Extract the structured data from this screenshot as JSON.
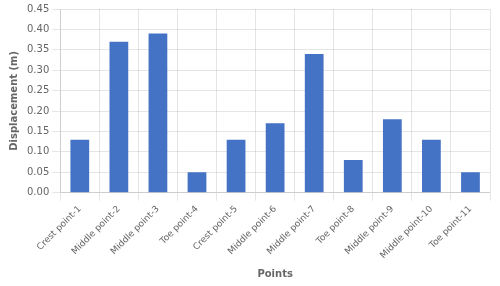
{
  "chart_data": {
    "type": "bar",
    "categories": [
      "Crest point-1",
      "Middle point-2",
      "Middle point-3",
      "Toe point-4",
      "Crest point-5",
      "Middle point-6",
      "Middle point-7",
      "Toe point-8",
      "Middle point-9",
      "Middle point-10",
      "Toe point-11"
    ],
    "values": [
      0.13,
      0.37,
      0.39,
      0.05,
      0.13,
      0.17,
      0.34,
      0.08,
      0.18,
      0.13,
      0.05
    ],
    "color": "#4472C4",
    "xlabel": "Points",
    "ylabel": "Displacement (m)",
    "ylim": [
      0.0,
      0.45
    ],
    "yticks": [
      {
        "value": 0.0,
        "label": "0.00"
      },
      {
        "value": 0.05,
        "label": "0.05"
      },
      {
        "value": 0.1,
        "label": "0.10"
      },
      {
        "value": 0.15,
        "label": "0.15"
      },
      {
        "value": 0.2,
        "label": "0.20"
      },
      {
        "value": 0.25,
        "label": "0.25"
      },
      {
        "value": 0.3,
        "label": "0.30"
      },
      {
        "value": 0.35,
        "label": "0.35"
      },
      {
        "value": 0.4,
        "label": "0.40"
      },
      {
        "value": 0.45,
        "label": "0.45"
      }
    ],
    "grid": true
  }
}
